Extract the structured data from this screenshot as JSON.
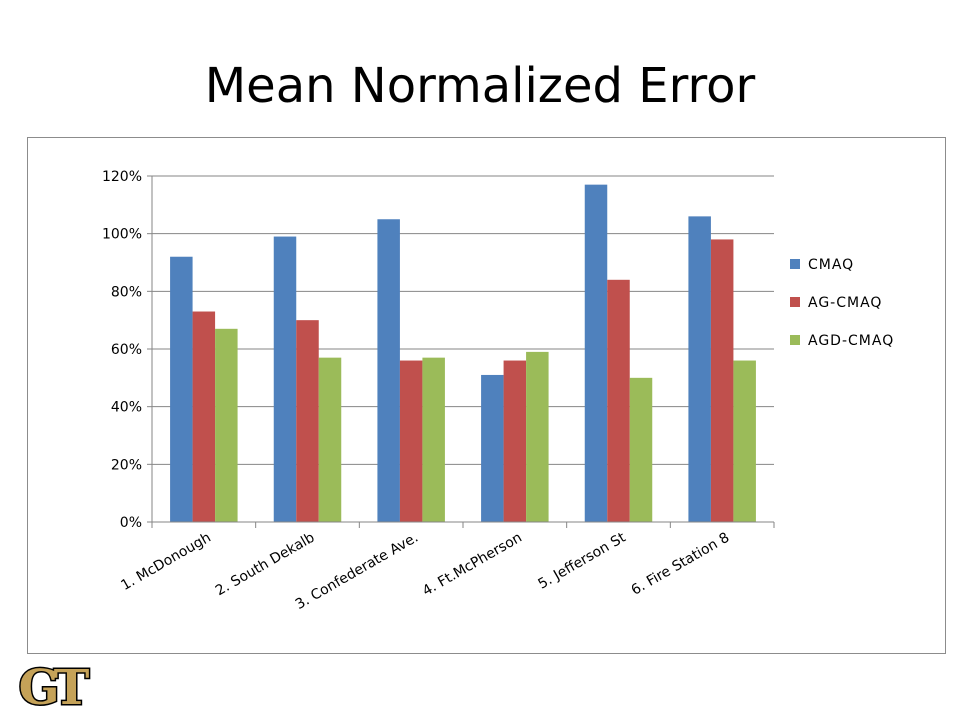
{
  "slide": {
    "title": "Mean Normalized Error"
  },
  "logo": {
    "text": "GT",
    "fill": "#c5a258",
    "outline": "#000000"
  },
  "chart_data": {
    "type": "bar",
    "title": "",
    "xlabel": "",
    "ylabel": "",
    "categories": [
      "1. McDonough",
      "2. South Dekalb",
      "3. Confederate Ave.",
      "4. Ft.McPherson",
      "5. Jefferson St",
      "6. Fire Station 8"
    ],
    "series": [
      {
        "name": "CMAQ",
        "color": "#4f81bd",
        "values": [
          92,
          99,
          105,
          51,
          117,
          106
        ]
      },
      {
        "name": "AG-CMAQ",
        "color": "#c0504d",
        "values": [
          73,
          70,
          56,
          56,
          84,
          98
        ]
      },
      {
        "name": "AGD-CMAQ",
        "color": "#9bbb59",
        "values": [
          67,
          57,
          57,
          59,
          50,
          56
        ]
      }
    ],
    "ylim": [
      0,
      120
    ],
    "yticks": [
      0,
      20,
      40,
      60,
      80,
      100,
      120
    ],
    "ytick_labels": [
      "0%",
      "20%",
      "40%",
      "60%",
      "80%",
      "100%",
      "120%"
    ],
    "grid": true,
    "legend_position": "right"
  }
}
